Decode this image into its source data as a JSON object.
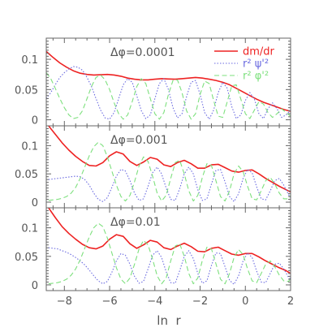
{
  "chart_data": {
    "type": "line",
    "xlabel": "ln  r",
    "xlim": [
      -8.8,
      2
    ],
    "xticks": [
      -8,
      -6,
      -4,
      -2,
      0,
      2
    ],
    "ylim": [
      -0.01,
      0.135
    ],
    "yticks": [
      0,
      0.05,
      0.1
    ],
    "ytick_labels": [
      "0",
      "0.05",
      "0.1"
    ],
    "legend": {
      "placement": "top-right",
      "panel": 0,
      "entries": [
        {
          "label": "dm/dr",
          "series": "dmdr"
        },
        {
          "label": "r²  ψ'²",
          "series": "psi"
        },
        {
          "label": "r²  φ'²",
          "series": "phi"
        }
      ]
    },
    "colors": {
      "dmdr": "#ee2222",
      "psi": "#6a6ae0",
      "phi": "#7ee07e",
      "axis": "#666666",
      "text": "#555555"
    },
    "panels": [
      {
        "label": "Δφ=0.0001",
        "series": [
          {
            "key": "dmdr",
            "x": [
              -8.8,
              -8.5,
              -8.2,
              -7.9,
              -7.6,
              -7.3,
              -7,
              -6.7,
              -6.4,
              -6.1,
              -5.8,
              -5.5,
              -5.2,
              -4.9,
              -4.6,
              -4.3,
              -4,
              -3.7,
              -3.4,
              -3.1,
              -2.8,
              -2.5,
              -2.2,
              -1.9,
              -1.6,
              -1.3,
              -1,
              -0.7,
              -0.4,
              -0.1,
              0.2,
              0.5,
              0.8,
              1.1,
              1.4,
              1.7,
              2
            ],
            "y": [
              0.113,
              0.103,
              0.094,
              0.087,
              0.081,
              0.077,
              0.075,
              0.074,
              0.0745,
              0.075,
              0.074,
              0.072,
              0.069,
              0.067,
              0.066,
              0.066,
              0.067,
              0.068,
              0.0675,
              0.067,
              0.068,
              0.069,
              0.07,
              0.069,
              0.067,
              0.065,
              0.062,
              0.058,
              0.052,
              0.046,
              0.04,
              0.034,
              0.029,
              0.025,
              0.021,
              0.017,
              0.014
            ]
          },
          {
            "key": "psi",
            "x": [
              -8.8,
              -8.6,
              -8.4,
              -8.2,
              -8,
              -7.8,
              -7.6,
              -7.4,
              -7.2,
              -7,
              -6.8,
              -6.6,
              -6.4,
              -6.2,
              -6,
              -5.8,
              -5.6,
              -5.4,
              -5.2,
              -5,
              -4.8,
              -4.6,
              -4.4,
              -4.2,
              -4,
              -3.8,
              -3.6,
              -3.4,
              -3.2,
              -3,
              -2.8,
              -2.6,
              -2.4,
              -2.2,
              -2,
              -1.8,
              -1.6,
              -1.4,
              -1.2,
              -1,
              -0.8,
              -0.6,
              -0.4,
              -0.2,
              0,
              0.2,
              0.4,
              0.6,
              0.8,
              1,
              1.2,
              1.4,
              1.6,
              1.8,
              2
            ],
            "y": [
              0.035,
              0.045,
              0.058,
              0.07,
              0.078,
              0.084,
              0.088,
              0.087,
              0.082,
              0.07,
              0.055,
              0.035,
              0.016,
              0.003,
              0.001,
              0.012,
              0.035,
              0.058,
              0.068,
              0.062,
              0.04,
              0.015,
              0.002,
              0.008,
              0.035,
              0.06,
              0.068,
              0.05,
              0.02,
              0.003,
              0.01,
              0.038,
              0.062,
              0.065,
              0.042,
              0.012,
              0.001,
              0.016,
              0.045,
              0.062,
              0.052,
              0.022,
              0.002,
              0.008,
              0.032,
              0.045,
              0.034,
              0.01,
              0.002,
              0.018,
              0.028,
              0.018,
              0.004,
              0.008,
              0.016
            ]
          },
          {
            "key": "phi",
            "x": [
              -8.8,
              -8.6,
              -8.4,
              -8.2,
              -8,
              -7.8,
              -7.6,
              -7.4,
              -7.2,
              -7,
              -6.8,
              -6.6,
              -6.4,
              -6.2,
              -6,
              -5.8,
              -5.6,
              -5.4,
              -5.2,
              -5,
              -4.8,
              -4.6,
              -4.4,
              -4.2,
              -4,
              -3.8,
              -3.6,
              -3.4,
              -3.2,
              -3,
              -2.8,
              -2.6,
              -2.4,
              -2.2,
              -2,
              -1.8,
              -1.6,
              -1.4,
              -1.2,
              -1,
              -0.8,
              -0.6,
              -0.4,
              -0.2,
              0,
              0.2,
              0.4,
              0.6,
              0.8,
              1,
              1.2,
              1.4,
              1.6,
              1.8,
              2
            ],
            "y": [
              0.078,
              0.068,
              0.052,
              0.035,
              0.02,
              0.008,
              0.002,
              0.004,
              0.015,
              0.035,
              0.055,
              0.07,
              0.074,
              0.066,
              0.05,
              0.028,
              0.01,
              0.001,
              0.008,
              0.03,
              0.055,
              0.068,
              0.06,
              0.035,
              0.01,
              0.001,
              0.012,
              0.042,
              0.065,
              0.066,
              0.045,
              0.015,
              0.001,
              0.01,
              0.042,
              0.064,
              0.06,
              0.032,
              0.006,
              0.004,
              0.03,
              0.056,
              0.058,
              0.034,
              0.01,
              0.002,
              0.016,
              0.03,
              0.026,
              0.012,
              0.004,
              0.01,
              0.018,
              0.012,
              0.006
            ]
          }
        ]
      },
      {
        "label": "Δφ=0.001",
        "series": [
          {
            "key": "dmdr",
            "x": [
              -8.7,
              -8.4,
              -8.1,
              -7.8,
              -7.5,
              -7.2,
              -6.9,
              -6.6,
              -6.3,
              -6,
              -5.7,
              -5.4,
              -5.1,
              -4.8,
              -4.5,
              -4.2,
              -3.9,
              -3.6,
              -3.3,
              -3,
              -2.7,
              -2.4,
              -2.1,
              -1.8,
              -1.5,
              -1.2,
              -0.9,
              -0.6,
              -0.3,
              0,
              0.3,
              0.6,
              0.9,
              1.2,
              1.5,
              1.8,
              2
            ],
            "y": [
              0.135,
              0.12,
              0.105,
              0.092,
              0.081,
              0.072,
              0.065,
              0.064,
              0.07,
              0.082,
              0.089,
              0.085,
              0.072,
              0.065,
              0.071,
              0.079,
              0.076,
              0.066,
              0.063,
              0.07,
              0.074,
              0.068,
              0.06,
              0.06,
              0.066,
              0.067,
              0.061,
              0.055,
              0.053,
              0.056,
              0.057,
              0.05,
              0.042,
              0.035,
              0.028,
              0.022,
              0.018
            ]
          },
          {
            "key": "psi",
            "x": [
              -8.7,
              -8.5,
              -8.3,
              -8.1,
              -7.9,
              -7.7,
              -7.5,
              -7.3,
              -7.1,
              -6.9,
              -6.7,
              -6.5,
              -6.3,
              -6.1,
              -5.9,
              -5.7,
              -5.5,
              -5.3,
              -5.1,
              -4.9,
              -4.7,
              -4.5,
              -4.3,
              -4.1,
              -3.9,
              -3.7,
              -3.5,
              -3.3,
              -3.1,
              -2.9,
              -2.7,
              -2.5,
              -2.3,
              -2.1,
              -1.9,
              -1.7,
              -1.5,
              -1.3,
              -1.1,
              -0.9,
              -0.7,
              -0.5,
              -0.3,
              -0.1,
              0.1,
              0.3,
              0.5,
              0.7,
              0.9,
              1.1,
              1.3,
              1.5,
              1.7,
              1.9,
              2
            ],
            "y": [
              0.04,
              0.041,
              0.042,
              0.043,
              0.044,
              0.045,
              0.046,
              0.045,
              0.04,
              0.03,
              0.016,
              0.005,
              0.001,
              0.008,
              0.026,
              0.046,
              0.058,
              0.055,
              0.038,
              0.016,
              0.003,
              0.006,
              0.028,
              0.052,
              0.062,
              0.05,
              0.025,
              0.005,
              0.003,
              0.024,
              0.05,
              0.062,
              0.05,
              0.022,
              0.003,
              0.006,
              0.032,
              0.056,
              0.058,
              0.036,
              0.01,
              0.001,
              0.015,
              0.042,
              0.058,
              0.052,
              0.027,
              0.006,
              0.004,
              0.02,
              0.038,
              0.042,
              0.03,
              0.014,
              0.008
            ]
          },
          {
            "key": "phi",
            "x": [
              -8.7,
              -8.5,
              -8.3,
              -8.1,
              -7.9,
              -7.7,
              -7.5,
              -7.3,
              -7.1,
              -6.9,
              -6.7,
              -6.5,
              -6.3,
              -6.1,
              -5.9,
              -5.7,
              -5.5,
              -5.3,
              -5.1,
              -4.9,
              -4.7,
              -4.5,
              -4.3,
              -4.1,
              -3.9,
              -3.7,
              -3.5,
              -3.3,
              -3.1,
              -2.9,
              -2.7,
              -2.5,
              -2.3,
              -2.1,
              -1.9,
              -1.7,
              -1.5,
              -1.3,
              -1.1,
              -0.9,
              -0.7,
              -0.5,
              -0.3,
              -0.1,
              0.1,
              0.3,
              0.5,
              0.7,
              0.9,
              1.1,
              1.3,
              1.5,
              1.7,
              1.9,
              2
            ],
            "y": [
              0.003,
              0.004,
              0.005,
              0.007,
              0.01,
              0.016,
              0.026,
              0.042,
              0.062,
              0.082,
              0.098,
              0.106,
              0.1,
              0.08,
              0.055,
              0.03,
              0.01,
              0.002,
              0.012,
              0.036,
              0.064,
              0.08,
              0.072,
              0.046,
              0.016,
              0.002,
              0.012,
              0.042,
              0.07,
              0.074,
              0.05,
              0.02,
              0.002,
              0.012,
              0.044,
              0.068,
              0.065,
              0.038,
              0.01,
              0.002,
              0.02,
              0.05,
              0.064,
              0.054,
              0.028,
              0.006,
              0.004,
              0.02,
              0.038,
              0.044,
              0.032,
              0.016,
              0.006,
              0.006,
              0.012
            ]
          }
        ]
      },
      {
        "label": "Δφ=0.01",
        "series": [
          {
            "key": "dmdr",
            "x": [
              -8.7,
              -8.4,
              -8.1,
              -7.8,
              -7.5,
              -7.2,
              -6.9,
              -6.6,
              -6.3,
              -6,
              -5.7,
              -5.4,
              -5.1,
              -4.8,
              -4.5,
              -4.2,
              -3.9,
              -3.6,
              -3.3,
              -3,
              -2.7,
              -2.4,
              -2.1,
              -1.8,
              -1.5,
              -1.2,
              -0.9,
              -0.6,
              -0.3,
              0,
              0.3,
              0.6,
              0.9,
              1.2,
              1.5,
              1.8,
              2
            ],
            "y": [
              0.135,
              0.118,
              0.102,
              0.09,
              0.08,
              0.071,
              0.065,
              0.063,
              0.068,
              0.08,
              0.088,
              0.085,
              0.072,
              0.064,
              0.07,
              0.078,
              0.075,
              0.065,
              0.062,
              0.068,
              0.073,
              0.067,
              0.059,
              0.058,
              0.064,
              0.066,
              0.06,
              0.054,
              0.052,
              0.055,
              0.055,
              0.049,
              0.042,
              0.036,
              0.03,
              0.025,
              0.02
            ]
          },
          {
            "key": "psi",
            "x": [
              -8.7,
              -8.5,
              -8.3,
              -8.1,
              -7.9,
              -7.7,
              -7.5,
              -7.3,
              -7.1,
              -6.9,
              -6.7,
              -6.5,
              -6.3,
              -6.1,
              -5.9,
              -5.7,
              -5.5,
              -5.3,
              -5.1,
              -4.9,
              -4.7,
              -4.5,
              -4.3,
              -4.1,
              -3.9,
              -3.7,
              -3.5,
              -3.3,
              -3.1,
              -2.9,
              -2.7,
              -2.5,
              -2.3,
              -2.1,
              -1.9,
              -1.7,
              -1.5,
              -1.3,
              -1.1,
              -0.9,
              -0.7,
              -0.5,
              -0.3,
              -0.1,
              0.1,
              0.3,
              0.5,
              0.7,
              0.9,
              1.1,
              1.3,
              1.5,
              1.7,
              1.9,
              2
            ],
            "y": [
              0.065,
              0.064,
              0.063,
              0.06,
              0.057,
              0.053,
              0.048,
              0.042,
              0.035,
              0.026,
              0.016,
              0.007,
              0.002,
              0.006,
              0.022,
              0.042,
              0.055,
              0.052,
              0.036,
              0.015,
              0.003,
              0.006,
              0.028,
              0.052,
              0.06,
              0.048,
              0.023,
              0.004,
              0.003,
              0.025,
              0.05,
              0.06,
              0.046,
              0.02,
              0.003,
              0.007,
              0.034,
              0.056,
              0.055,
              0.032,
              0.008,
              0.001,
              0.016,
              0.042,
              0.056,
              0.048,
              0.024,
              0.005,
              0.004,
              0.02,
              0.036,
              0.038,
              0.028,
              0.014,
              0.01
            ]
          },
          {
            "key": "phi",
            "x": [
              -8.7,
              -8.5,
              -8.3,
              -8.1,
              -7.9,
              -7.7,
              -7.5,
              -7.3,
              -7.1,
              -6.9,
              -6.7,
              -6.5,
              -6.3,
              -6.1,
              -5.9,
              -5.7,
              -5.5,
              -5.3,
              -5.1,
              -4.9,
              -4.7,
              -4.5,
              -4.3,
              -4.1,
              -3.9,
              -3.7,
              -3.5,
              -3.3,
              -3.1,
              -2.9,
              -2.7,
              -2.5,
              -2.3,
              -2.1,
              -1.9,
              -1.7,
              -1.5,
              -1.3,
              -1.1,
              -0.9,
              -0.7,
              -0.5,
              -0.3,
              -0.1,
              0.1,
              0.3,
              0.5,
              0.7,
              0.9,
              1.1,
              1.3,
              1.5,
              1.7,
              1.9,
              2
            ],
            "y": [
              0.002,
              0.003,
              0.004,
              0.006,
              0.01,
              0.017,
              0.028,
              0.044,
              0.064,
              0.084,
              0.1,
              0.108,
              0.102,
              0.082,
              0.056,
              0.03,
              0.01,
              0.002,
              0.012,
              0.036,
              0.063,
              0.078,
              0.07,
              0.045,
              0.016,
              0.002,
              0.012,
              0.042,
              0.068,
              0.072,
              0.05,
              0.02,
              0.002,
              0.012,
              0.043,
              0.066,
              0.063,
              0.037,
              0.01,
              0.002,
              0.02,
              0.048,
              0.062,
              0.053,
              0.028,
              0.007,
              0.004,
              0.02,
              0.036,
              0.042,
              0.032,
              0.017,
              0.007,
              0.006,
              0.01
            ]
          }
        ]
      }
    ]
  }
}
